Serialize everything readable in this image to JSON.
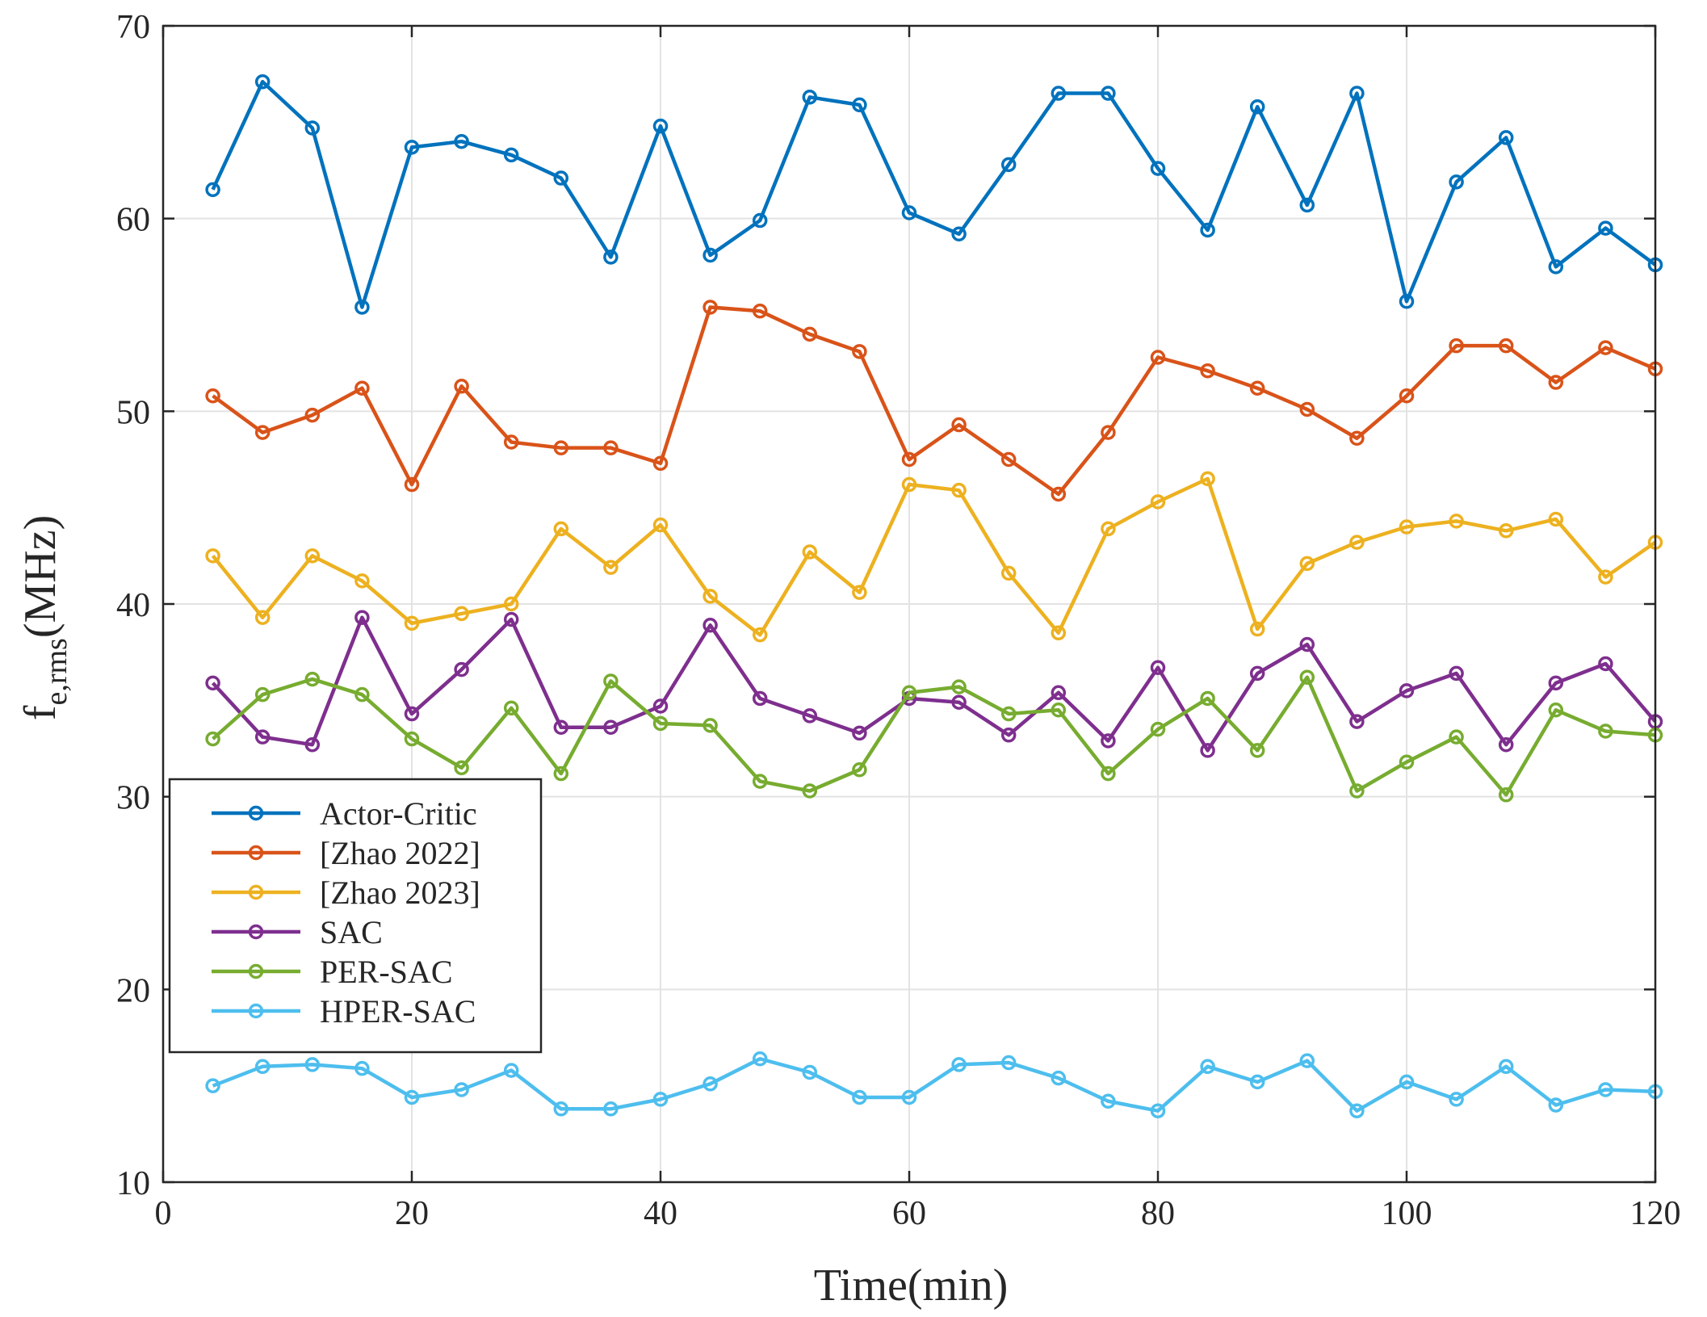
{
  "chart_data": {
    "type": "line",
    "title": "",
    "xlabel": "Time(min)",
    "ylabel": {
      "main": "f",
      "subscript": "e,rms",
      "unit": "(MHz)"
    },
    "xlim": [
      0,
      120
    ],
    "ylim": [
      10,
      70
    ],
    "xticks": [
      0,
      20,
      40,
      60,
      80,
      100,
      120
    ],
    "yticks": [
      10,
      20,
      30,
      40,
      50,
      60,
      70
    ],
    "grid": true,
    "legend_position": "lower-left",
    "x": [
      4,
      8,
      12,
      16,
      20,
      24,
      28,
      32,
      36,
      40,
      44,
      48,
      52,
      56,
      60,
      64,
      68,
      72,
      76,
      80,
      84,
      88,
      92,
      96,
      100,
      104,
      108,
      112,
      116,
      120
    ],
    "series": [
      {
        "name": "Actor-Critic",
        "color": "#0072BD",
        "values": [
          61.5,
          67.1,
          64.7,
          55.4,
          63.7,
          64.0,
          63.3,
          62.1,
          58.0,
          64.8,
          58.1,
          59.9,
          66.3,
          65.9,
          60.3,
          59.2,
          62.8,
          66.5,
          66.5,
          62.6,
          59.4,
          65.8,
          60.7,
          66.5,
          55.7,
          61.9,
          64.2,
          57.5,
          59.5,
          57.6
        ]
      },
      {
        "name": "[Zhao 2022]",
        "color": "#D95319",
        "values": [
          50.8,
          48.9,
          49.8,
          51.2,
          46.2,
          51.3,
          48.4,
          48.1,
          48.1,
          47.3,
          55.4,
          55.2,
          54.0,
          53.1,
          47.5,
          49.3,
          47.5,
          45.7,
          48.9,
          52.8,
          52.1,
          51.2,
          50.1,
          48.6,
          50.8,
          53.4,
          53.4,
          51.5,
          53.3,
          52.2
        ]
      },
      {
        "name": "[Zhao 2023]",
        "color": "#EDB120",
        "values": [
          42.5,
          39.3,
          42.5,
          41.2,
          39.0,
          39.5,
          40.0,
          43.9,
          41.9,
          44.1,
          40.4,
          38.4,
          42.7,
          40.6,
          46.2,
          45.9,
          41.6,
          38.5,
          43.9,
          45.3,
          46.5,
          38.7,
          42.1,
          43.2,
          44.0,
          44.3,
          43.8,
          44.4,
          41.4,
          43.2
        ]
      },
      {
        "name": "SAC",
        "color": "#7E2F8E",
        "values": [
          35.9,
          33.1,
          32.7,
          39.3,
          34.3,
          36.6,
          39.2,
          33.6,
          33.6,
          34.7,
          38.9,
          35.1,
          34.2,
          33.3,
          35.1,
          34.9,
          33.2,
          35.4,
          32.9,
          36.7,
          32.4,
          36.4,
          37.9,
          33.9,
          35.5,
          36.4,
          32.7,
          35.9,
          36.9,
          33.9
        ]
      },
      {
        "name": "PER-SAC",
        "color": "#77AC30",
        "values": [
          33.0,
          35.3,
          36.1,
          35.3,
          33.0,
          31.5,
          34.6,
          31.2,
          36.0,
          33.8,
          33.7,
          30.8,
          30.3,
          31.4,
          35.4,
          35.7,
          34.3,
          34.5,
          31.2,
          33.5,
          35.1,
          32.4,
          36.2,
          30.3,
          31.8,
          33.1,
          30.1,
          34.5,
          33.4,
          33.2
        ]
      },
      {
        "name": "HPER-SAC",
        "color": "#4DBEEE",
        "values": [
          15.0,
          16.0,
          16.1,
          15.9,
          14.4,
          14.8,
          15.8,
          13.8,
          13.8,
          14.3,
          15.1,
          16.4,
          15.7,
          14.4,
          14.4,
          16.1,
          16.2,
          15.4,
          14.2,
          13.7,
          16.0,
          15.2,
          16.3,
          13.7,
          15.2,
          14.3,
          16.0,
          14.0,
          14.8,
          14.7
        ]
      }
    ]
  }
}
